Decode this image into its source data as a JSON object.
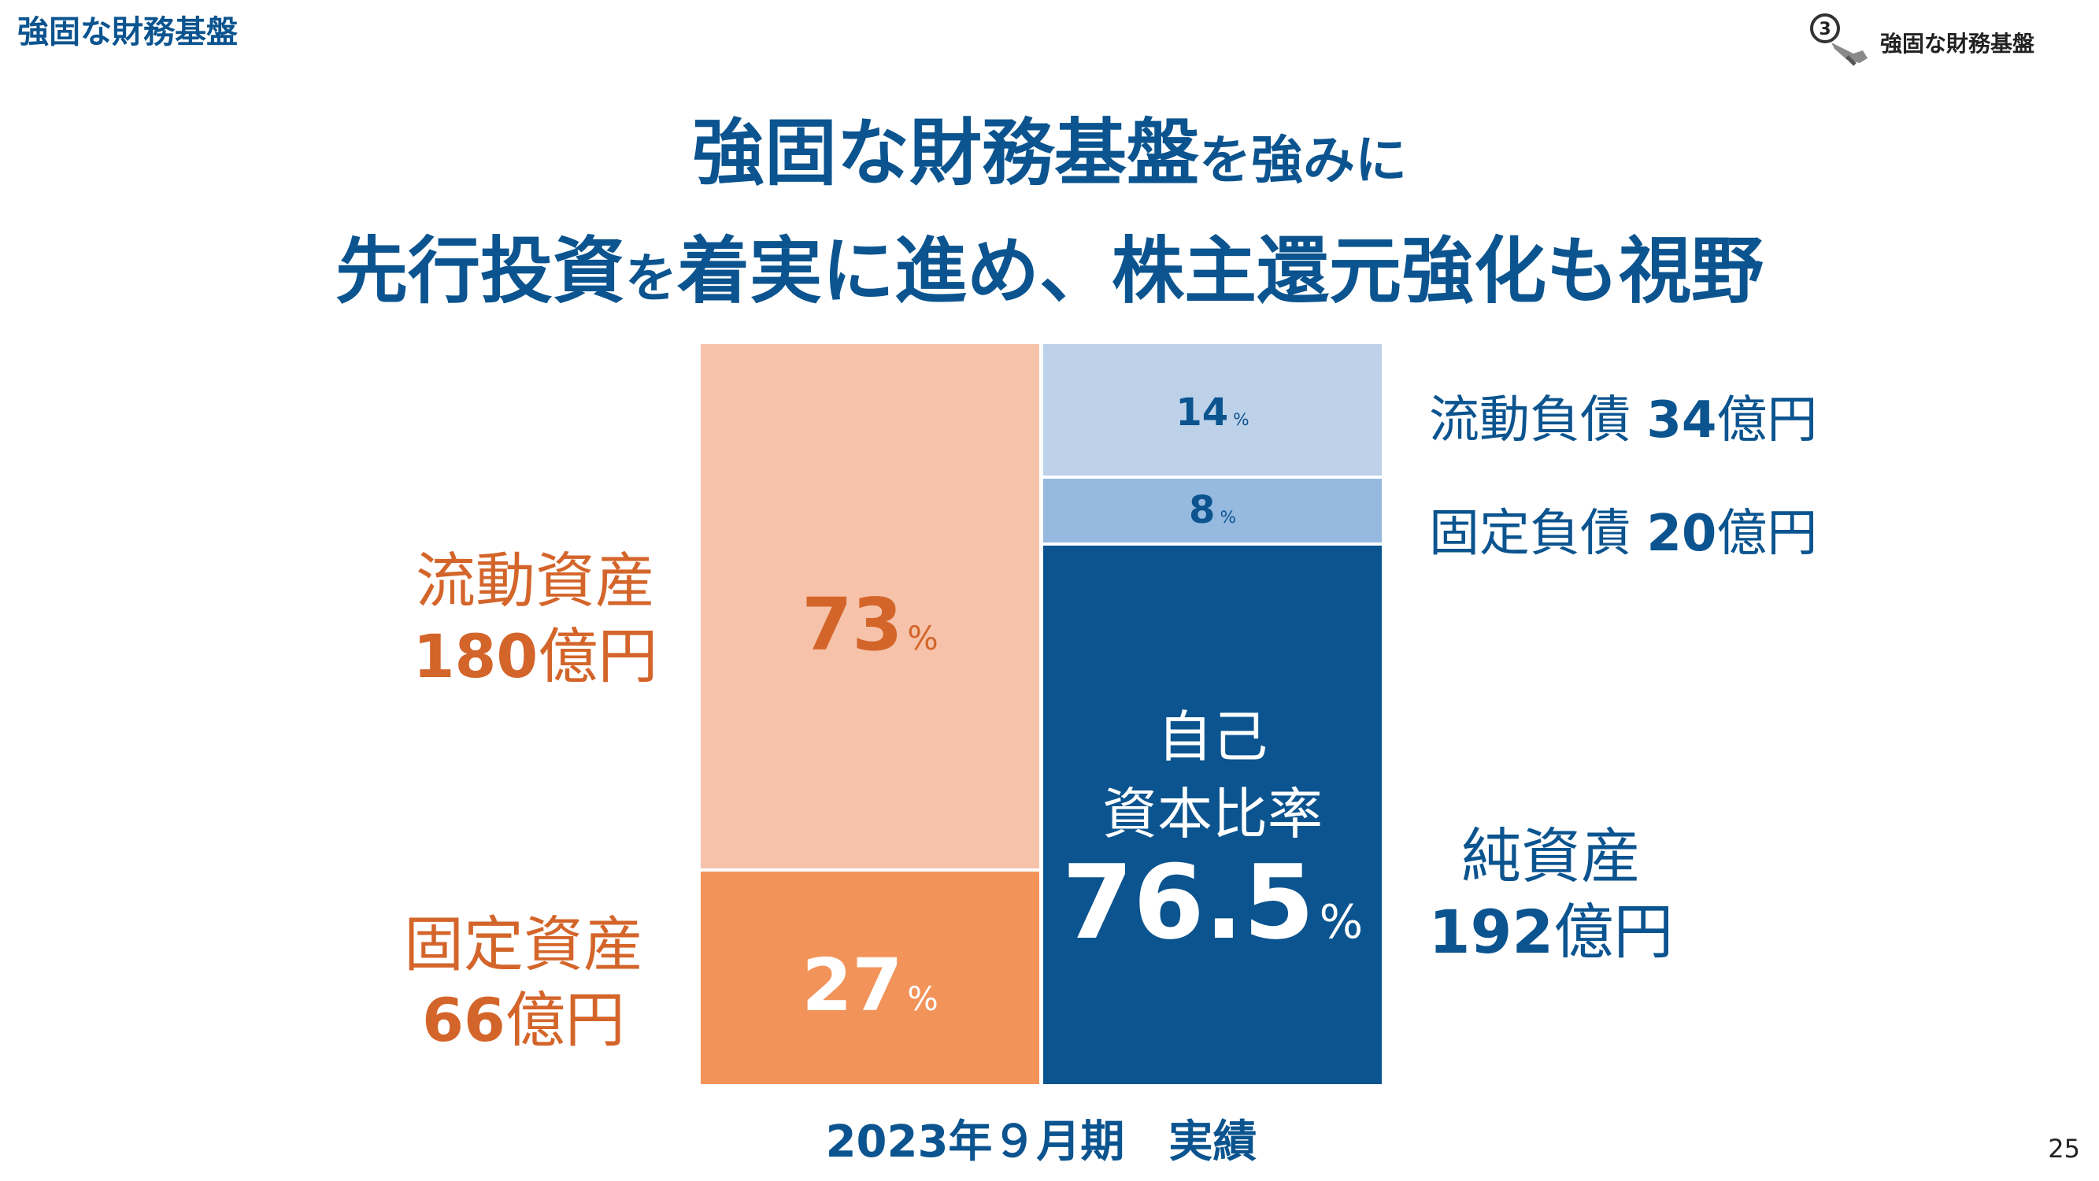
{
  "header": {
    "section_title": "強固な財務基盤",
    "badge_number": "3",
    "badge_label": "強固な財務基盤"
  },
  "headline": {
    "line1_main": "強固な財務基盤",
    "line1_tail": "を強みに",
    "line2_part1": "先行投資",
    "line2_kana": "を",
    "line2_part2": "着実に進め、株主還元強化も視野"
  },
  "chart_data": {
    "type": "bar",
    "subtype": "stacked-balance-sheet",
    "categories": [
      "2023年９月期　実績"
    ],
    "xlabel": "2023年９月期　実績",
    "unit": "%",
    "columns": [
      {
        "side": "資産",
        "segments": [
          {
            "name": "流動資産",
            "percent": 73,
            "amount": "180",
            "amount_unit": "億円",
            "color": "#f6c3aa"
          },
          {
            "name": "固定資産",
            "percent": 27,
            "amount": "66",
            "amount_unit": "億円",
            "color": "#f2935a"
          }
        ]
      },
      {
        "side": "負債・純資産",
        "segments": [
          {
            "name": "流動負債",
            "percent": 14,
            "amount": "34",
            "amount_unit": "億円",
            "color": "#bdd1e8"
          },
          {
            "name": "固定負債",
            "percent": 8,
            "amount": "20",
            "amount_unit": "億円",
            "color": "#96b9e0"
          },
          {
            "name": "純資産",
            "percent": 76.5,
            "amount": "192",
            "amount_unit": "億円",
            "color": "#0b548f"
          }
        ]
      }
    ],
    "equity_ratio_label_1": "自己",
    "equity_ratio_label_2": "資本比率",
    "equity_ratio": "76.5",
    "labels": {
      "current_asset_pct": "73",
      "fixed_asset_pct": "27",
      "current_liab_pct": "14",
      "fixed_liab_pct": "8",
      "pct_unit": "%",
      "current_asset_name": "流動資産",
      "current_asset_amount": "180",
      "fixed_asset_name": "固定資産",
      "fixed_asset_amount": "66",
      "current_liab_name": "流動負債",
      "current_liab_amount": "34",
      "fixed_liab_name": "固定負債",
      "fixed_liab_amount": "20",
      "net_assets_name": "純資産",
      "net_assets_amount": "192",
      "amount_unit": "億円"
    }
  },
  "footer": {
    "page_number": "25"
  }
}
